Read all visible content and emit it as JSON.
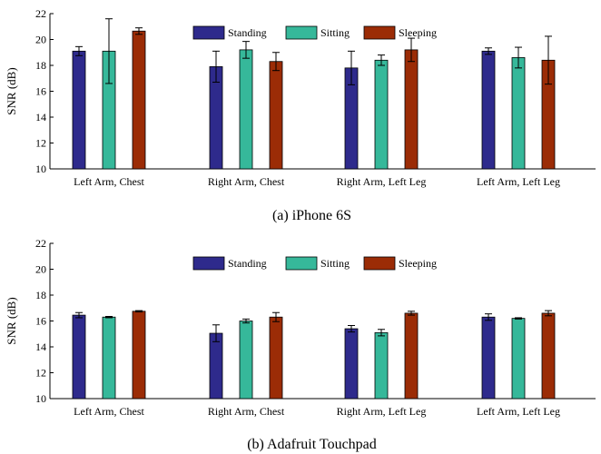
{
  "chart_data": [
    {
      "type": "bar",
      "caption": "(a) iPhone 6S",
      "ylabel": "SNR (dB)",
      "xlabel": "",
      "ylim": [
        10,
        22
      ],
      "yticks": [
        10,
        12,
        14,
        16,
        18,
        20,
        22
      ],
      "grid": false,
      "legend_position": "top-center",
      "categories": [
        "Left Arm, Chest",
        "Right Arm, Chest",
        "Right Arm, Left Leg",
        "Left Arm, Left Leg"
      ],
      "series": [
        {
          "name": "Standing",
          "color": "#2e2a8c",
          "values": [
            19.1,
            17.9,
            17.8,
            19.1
          ],
          "errors": [
            0.35,
            1.2,
            1.3,
            0.25
          ]
        },
        {
          "name": "Sitting",
          "color": "#36b89a",
          "values": [
            19.1,
            19.2,
            18.4,
            18.6
          ],
          "errors": [
            2.5,
            0.65,
            0.4,
            0.8
          ]
        },
        {
          "name": "Sleeping",
          "color": "#9b2c06",
          "values": [
            20.65,
            18.3,
            19.2,
            18.4
          ],
          "errors": [
            0.25,
            0.7,
            0.9,
            1.85
          ]
        }
      ]
    },
    {
      "type": "bar",
      "caption": "(b) Adafruit Touchpad",
      "ylabel": "SNR (dB)",
      "xlabel": "",
      "ylim": [
        10,
        22
      ],
      "yticks": [
        10,
        12,
        14,
        16,
        18,
        20,
        22
      ],
      "grid": false,
      "legend_position": "top-center",
      "categories": [
        "Left Arm, Chest",
        "Right Arm, Chest",
        "Right Arm, Left Leg",
        "Left Arm, Left Leg"
      ],
      "series": [
        {
          "name": "Standing",
          "color": "#2e2a8c",
          "values": [
            16.45,
            15.05,
            15.4,
            16.3
          ],
          "errors": [
            0.2,
            0.65,
            0.25,
            0.25
          ]
        },
        {
          "name": "Sitting",
          "color": "#36b89a",
          "values": [
            16.3,
            16.0,
            15.1,
            16.2
          ],
          "errors": [
            0.05,
            0.15,
            0.25,
            0.05
          ]
        },
        {
          "name": "Sleeping",
          "color": "#9b2c06",
          "values": [
            16.75,
            16.3,
            16.6,
            16.6
          ],
          "errors": [
            0.05,
            0.35,
            0.15,
            0.2
          ]
        }
      ]
    }
  ]
}
